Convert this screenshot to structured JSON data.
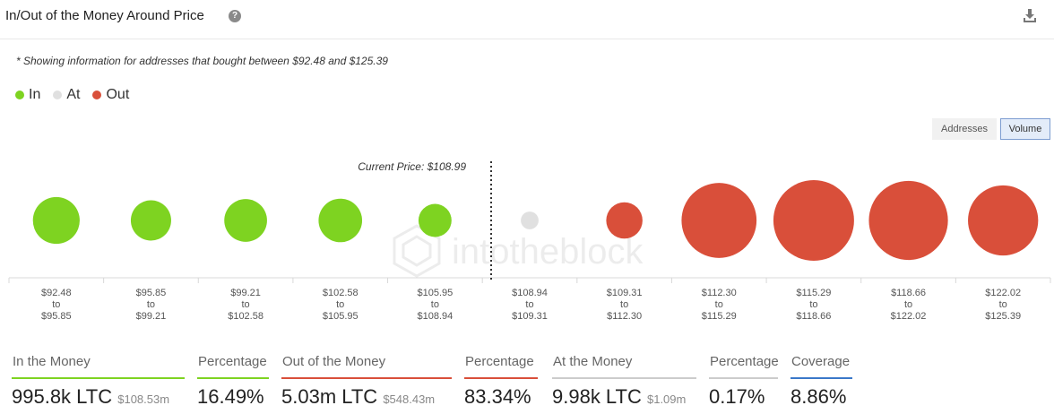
{
  "header": {
    "title": "In/Out of the Money Around Price",
    "help_glyph": "?",
    "help_icon": "question-circle-icon",
    "download_icon": "download-icon"
  },
  "note": "* Showing information for addresses that bought between $92.48 and $125.39",
  "legend": [
    {
      "label": "In",
      "color": "#7ed321"
    },
    {
      "label": "At",
      "color": "#e0e0e0"
    },
    {
      "label": "Out",
      "color": "#d94f3a"
    }
  ],
  "toggle": {
    "addresses_label": "Addresses",
    "volume_label": "Volume",
    "selected": "Volume"
  },
  "chart_data": {
    "type": "scatter",
    "encoding": "bubble size = volume",
    "current_price_label": "Current Price: $108.99",
    "current_price": 108.99,
    "watermark": "intotheblock",
    "categories": [
      {
        "from": "$92.48",
        "to": "$95.85",
        "status": "in",
        "relative_size": 0.58
      },
      {
        "from": "$95.85",
        "to": "$99.21",
        "status": "in",
        "relative_size": 0.5
      },
      {
        "from": "$99.21",
        "to": "$102.58",
        "status": "in",
        "relative_size": 0.53
      },
      {
        "from": "$102.58",
        "to": "$105.95",
        "status": "in",
        "relative_size": 0.54
      },
      {
        "from": "$105.95",
        "to": "$108.94",
        "status": "in",
        "relative_size": 0.41
      },
      {
        "from": "$108.94",
        "to": "$109.31",
        "status": "at",
        "relative_size": 0.22
      },
      {
        "from": "$109.31",
        "to": "$112.30",
        "status": "out",
        "relative_size": 0.45
      },
      {
        "from": "$112.30",
        "to": "$115.29",
        "status": "out",
        "relative_size": 0.93
      },
      {
        "from": "$115.29",
        "to": "$118.66",
        "status": "out",
        "relative_size": 1.0
      },
      {
        "from": "$118.66",
        "to": "$122.02",
        "status": "out",
        "relative_size": 0.98
      },
      {
        "from": "$122.02",
        "to": "$125.39",
        "status": "out",
        "relative_size": 0.87
      }
    ],
    "range_joiner": "to"
  },
  "stats": {
    "in_money": {
      "label": "In the Money",
      "value": "995.8k LTC",
      "sub": "$108.53m",
      "color": "#7ed321"
    },
    "in_pct": {
      "label": "Percentage",
      "value": "16.49%",
      "color": "#7ed321"
    },
    "out_money": {
      "label": "Out of the Money",
      "value": "5.03m LTC",
      "sub": "$548.43m",
      "color": "#d94f3a"
    },
    "out_pct": {
      "label": "Percentage",
      "value": "83.34%",
      "color": "#d94f3a"
    },
    "at_money": {
      "label": "At the Money",
      "value": "9.98k LTC",
      "sub": "$1.09m",
      "color": "#cccccc"
    },
    "at_pct": {
      "label": "Percentage",
      "value": "0.17%",
      "color": "#cccccc"
    },
    "coverage": {
      "label": "Coverage",
      "value": "8.86%",
      "color": "#3a78c9"
    }
  }
}
